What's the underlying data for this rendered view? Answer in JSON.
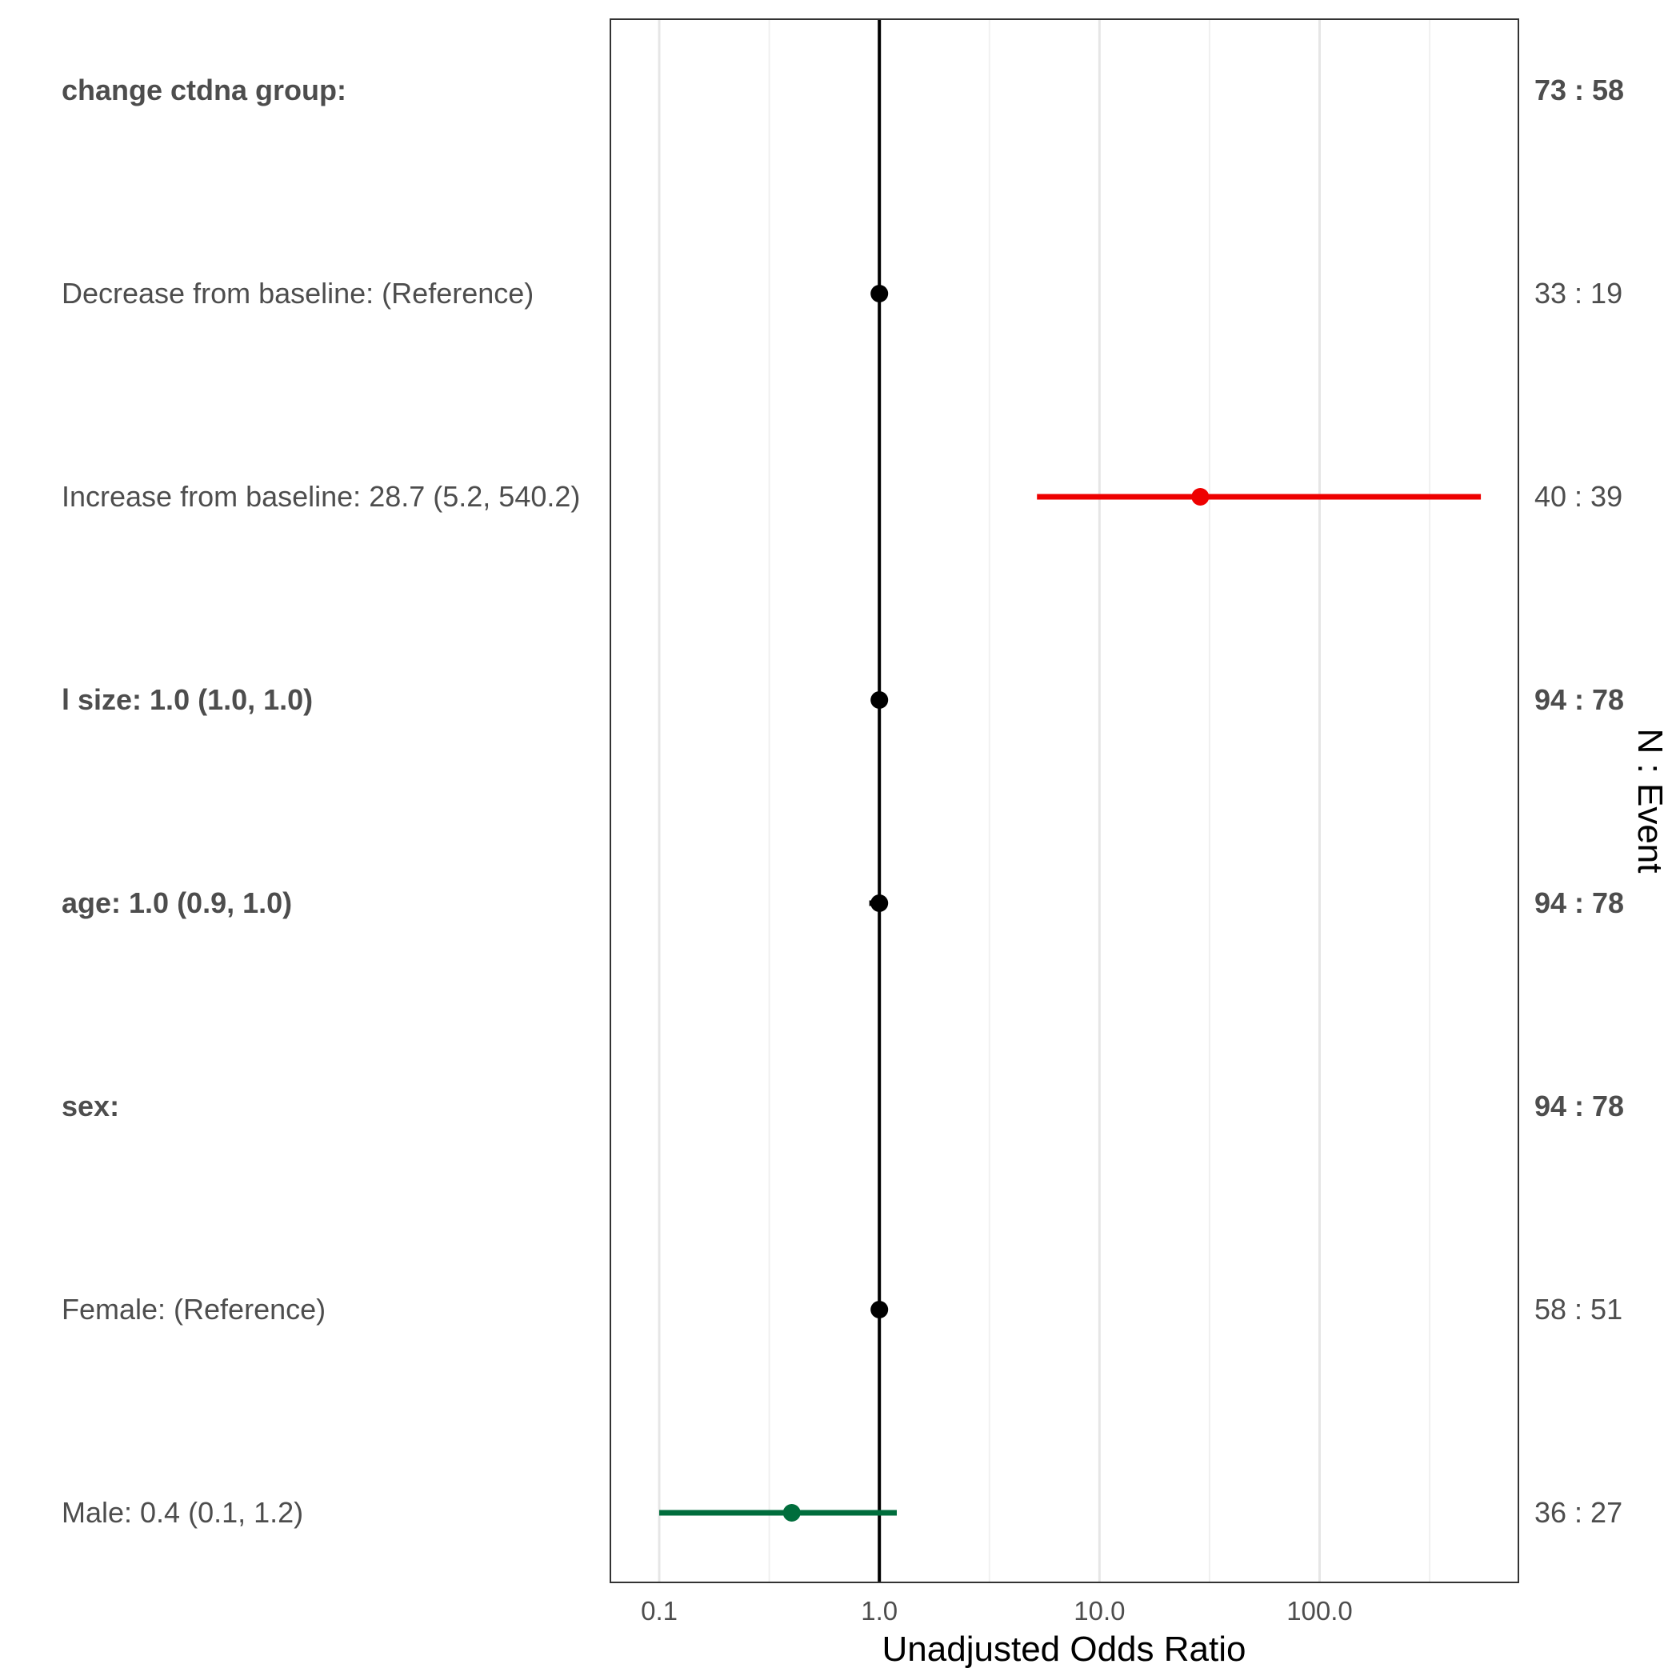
{
  "chart_data": {
    "type": "forest",
    "xlabel": "Unadjusted Odds Ratio",
    "right_axis_label": "N : Event",
    "x_scale": "log10",
    "xlim": [
      0.06,
      800
    ],
    "x_ticks": [
      0.1,
      1.0,
      10.0,
      100.0
    ],
    "x_tick_labels": [
      "0.1",
      "1.0",
      "10.0",
      "100.0"
    ],
    "reference_line": 1.0,
    "grid": "vertical",
    "rows": [
      {
        "label": "change ctdna group:",
        "bold": true,
        "n_event": "73 : 58",
        "or": null,
        "lower": null,
        "upper": null,
        "color": null
      },
      {
        "label": "Decrease from baseline: (Reference)",
        "bold": false,
        "n_event": "33 : 19",
        "or": 1.0,
        "lower": null,
        "upper": null,
        "color": "#000000"
      },
      {
        "label": "Increase from baseline: 28.7 (5.2, 540.2)",
        "bold": false,
        "n_event": "40 : 39",
        "or": 28.7,
        "lower": 5.2,
        "upper": 540.2,
        "color": "#ee0000"
      },
      {
        "label": "l size: 1.0 (1.0, 1.0)",
        "bold": true,
        "n_event": "94 : 78",
        "or": 1.0,
        "lower": 1.0,
        "upper": 1.0,
        "color": "#000000"
      },
      {
        "label": "age: 1.0 (0.9, 1.0)",
        "bold": true,
        "n_event": "94 : 78",
        "or": 1.0,
        "lower": 0.9,
        "upper": 1.0,
        "color": "#000000"
      },
      {
        "label": "sex:",
        "bold": true,
        "n_event": "94 : 78",
        "or": null,
        "lower": null,
        "upper": null,
        "color": null
      },
      {
        "label": "Female: (Reference)",
        "bold": false,
        "n_event": "58 : 51",
        "or": 1.0,
        "lower": null,
        "upper": null,
        "color": "#000000"
      },
      {
        "label": "Male: 0.4 (0.1, 1.2)",
        "bold": false,
        "n_event": "36 : 27",
        "or": 0.4,
        "lower": 0.1,
        "upper": 1.2,
        "color": "#006d3c"
      }
    ]
  }
}
